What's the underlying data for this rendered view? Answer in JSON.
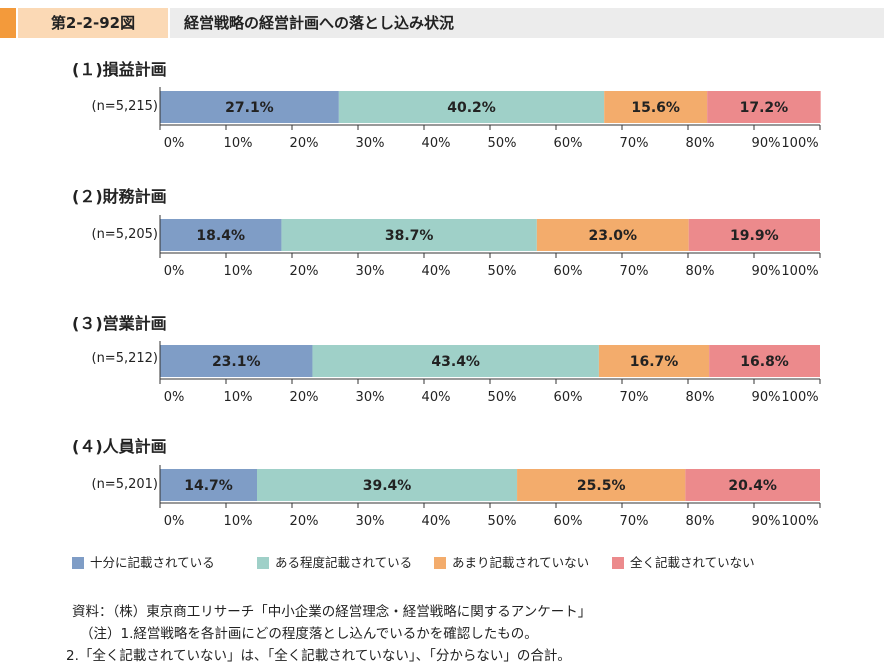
{
  "header": {
    "figure_no": "第2-2-92図",
    "title": "経営戦略の経営計画への落とし込み状況"
  },
  "colors": {
    "cat1": "#7f9dc6",
    "cat2": "#9fd0c8",
    "cat3": "#f3ac6c",
    "cat4": "#ec8a8c"
  },
  "legend": {
    "items": [
      "十分に記載されている",
      "ある程度記載されている",
      "あまり記載されていない",
      "全く記載されていない"
    ]
  },
  "chart_data": [
    {
      "type": "bar",
      "stacked": true,
      "orientation": "horizontal",
      "title": "(１)損益計画",
      "categories": [
        "(n=5,215)"
      ],
      "series": [
        {
          "name": "十分に記載されている",
          "values": [
            27.1
          ]
        },
        {
          "name": "ある程度記載されている",
          "values": [
            40.2
          ]
        },
        {
          "name": "あまり記載されていない",
          "values": [
            15.6
          ]
        },
        {
          "name": "全く記載されていない",
          "values": [
            17.2
          ]
        }
      ],
      "labels": [
        "27.1%",
        "40.2%",
        "15.6%",
        "17.2%"
      ],
      "xlim": [
        0,
        100
      ]
    },
    {
      "type": "bar",
      "stacked": true,
      "orientation": "horizontal",
      "title": "(２)財務計画",
      "categories": [
        "(n=5,205)"
      ],
      "series": [
        {
          "name": "十分に記載されている",
          "values": [
            18.4
          ]
        },
        {
          "name": "ある程度記載されている",
          "values": [
            38.7
          ]
        },
        {
          "name": "あまり記載されていない",
          "values": [
            23.0
          ]
        },
        {
          "name": "全く記載されていない",
          "values": [
            19.9
          ]
        }
      ],
      "labels": [
        "18.4%",
        "38.7%",
        "23.0%",
        "19.9%"
      ],
      "xlim": [
        0,
        100
      ]
    },
    {
      "type": "bar",
      "stacked": true,
      "orientation": "horizontal",
      "title": "(３)営業計画",
      "categories": [
        "(n=5,212)"
      ],
      "series": [
        {
          "name": "十分に記載されている",
          "values": [
            23.1
          ]
        },
        {
          "name": "ある程度記載されている",
          "values": [
            43.4
          ]
        },
        {
          "name": "あまり記載されていない",
          "values": [
            16.7
          ]
        },
        {
          "name": "全く記載されていない",
          "values": [
            16.8
          ]
        }
      ],
      "labels": [
        "23.1%",
        "43.4%",
        "16.7%",
        "16.8%"
      ],
      "xlim": [
        0,
        100
      ]
    },
    {
      "type": "bar",
      "stacked": true,
      "orientation": "horizontal",
      "title": "(４)人員計画",
      "categories": [
        "(n=5,201)"
      ],
      "series": [
        {
          "name": "十分に記載されている",
          "values": [
            14.7
          ]
        },
        {
          "name": "ある程度記載されている",
          "values": [
            39.4
          ]
        },
        {
          "name": "あまり記載されていない",
          "values": [
            25.5
          ]
        },
        {
          "name": "全く記載されていない",
          "values": [
            20.4
          ]
        }
      ],
      "labels": [
        "14.7%",
        "39.4%",
        "25.5%",
        "20.4%"
      ],
      "xlim": [
        0,
        100
      ]
    }
  ],
  "ticks": [
    "0%",
    "10%",
    "20%",
    "30%",
    "40%",
    "50%",
    "60%",
    "70%",
    "80%",
    "90%",
    "100%"
  ],
  "notes": [
    "資料：（株）東京商工リサーチ「中小企業の経営理念・経営戦略に関するアンケート」",
    "（注）1.経営戦略を各計画にどの程度落とし込んでいるかを確認したもの。",
    "2.「全く記載されていない」は、「全く記載されていない」、「分からない」の合計。"
  ]
}
